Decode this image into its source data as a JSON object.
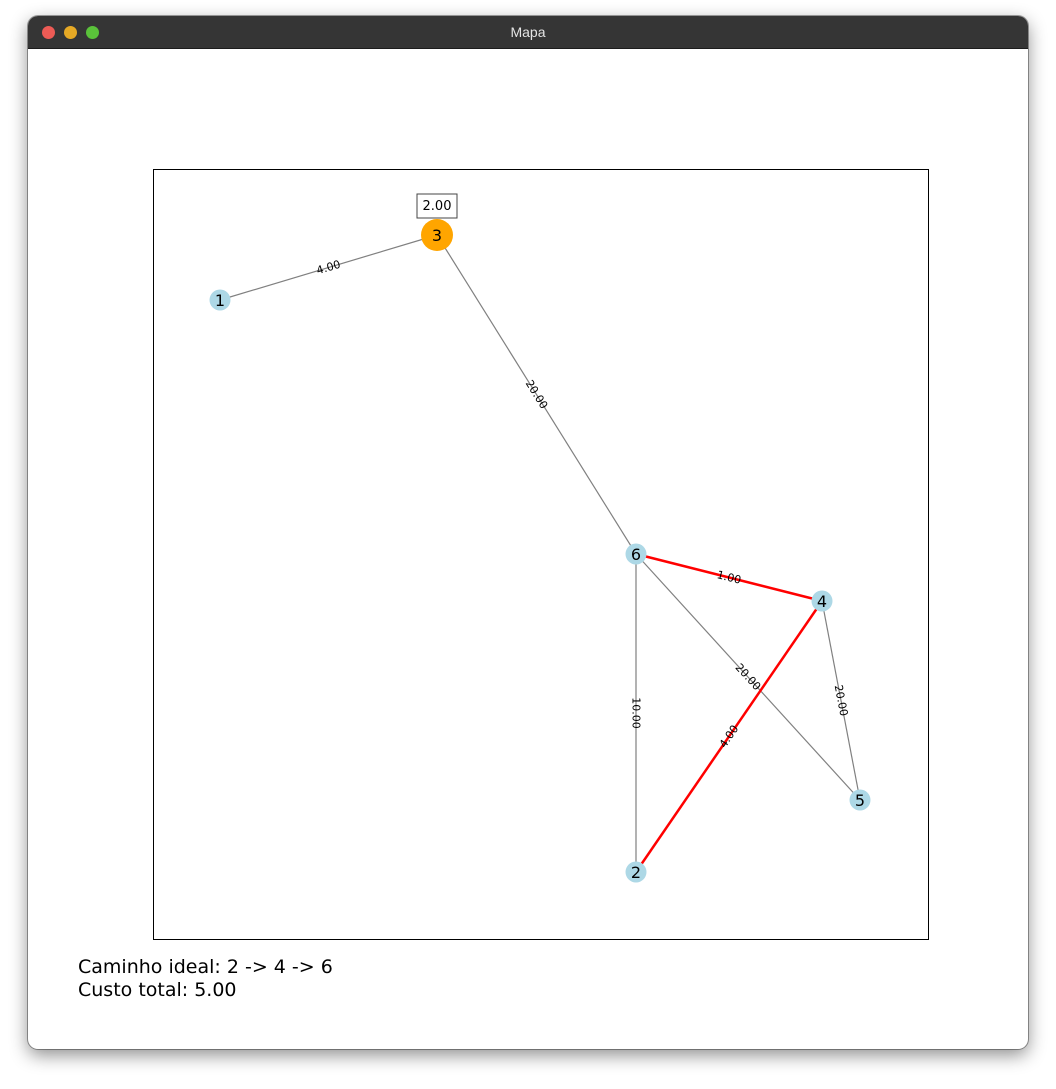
{
  "window": {
    "title": "Mapa"
  },
  "graph": {
    "nodes": [
      {
        "id": "1",
        "label": "1",
        "color": "#add8e6"
      },
      {
        "id": "2",
        "label": "2",
        "color": "#add8e6"
      },
      {
        "id": "3",
        "label": "3",
        "color": "#ffa500",
        "annotation": "2.00"
      },
      {
        "id": "4",
        "label": "4",
        "color": "#add8e6"
      },
      {
        "id": "5",
        "label": "5",
        "color": "#add8e6"
      },
      {
        "id": "6",
        "label": "6",
        "color": "#add8e6"
      }
    ],
    "edges": [
      {
        "from": "1",
        "to": "3",
        "label": "4.00",
        "highlight": false
      },
      {
        "from": "3",
        "to": "6",
        "label": "20.00",
        "highlight": false
      },
      {
        "from": "6",
        "to": "4",
        "label": "1.00",
        "highlight": true
      },
      {
        "from": "6",
        "to": "2",
        "label": "10.00",
        "highlight": false
      },
      {
        "from": "6",
        "to": "5",
        "label": "20.00",
        "highlight": false
      },
      {
        "from": "4",
        "to": "5",
        "label": "20.00",
        "highlight": false
      },
      {
        "from": "4",
        "to": "2",
        "label": "4.00",
        "highlight": true
      }
    ],
    "colors": {
      "edge": "#808080",
      "highlight_edge": "#ff0000",
      "node_default": "#add8e6",
      "node_selected": "#ffa500"
    }
  },
  "summary": {
    "path_text": "Caminho ideal: 2 -> 4 -> 6",
    "cost_text": "Custo total: 5.00"
  }
}
